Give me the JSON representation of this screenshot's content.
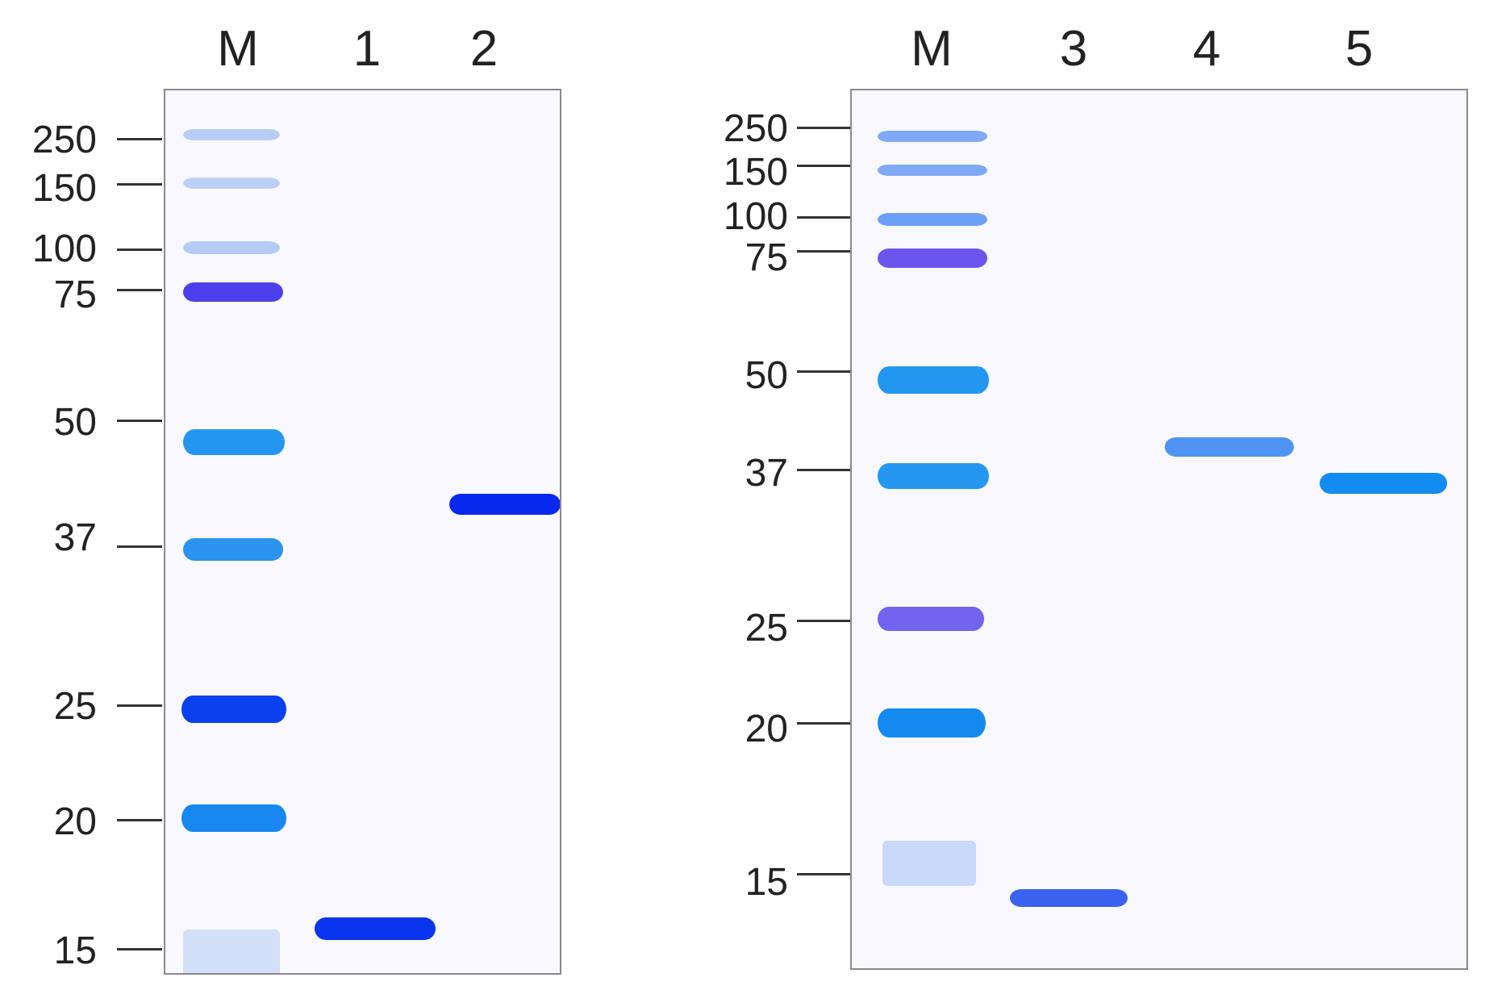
{
  "panels": [
    {
      "lanes": [
        "M",
        "1",
        "2"
      ],
      "markers": [
        "250",
        "150",
        "100",
        "75",
        "50",
        "37",
        "25",
        "20",
        "15"
      ]
    },
    {
      "lanes": [
        "M",
        "3",
        "4",
        "5"
      ],
      "markers": [
        "250",
        "150",
        "100",
        "75",
        "50",
        "37",
        "25",
        "20",
        "15"
      ]
    }
  ],
  "colors": {
    "gel_background": "#f8f8fe",
    "marker_light": "#a9c4f5",
    "marker_cyan": "#1e90f0",
    "marker_dark": "#0a3cf0",
    "marker_violet": "#4a3ef0",
    "sample_dark": "#0a2ef0",
    "sample_medium": "#2a6cf0"
  }
}
